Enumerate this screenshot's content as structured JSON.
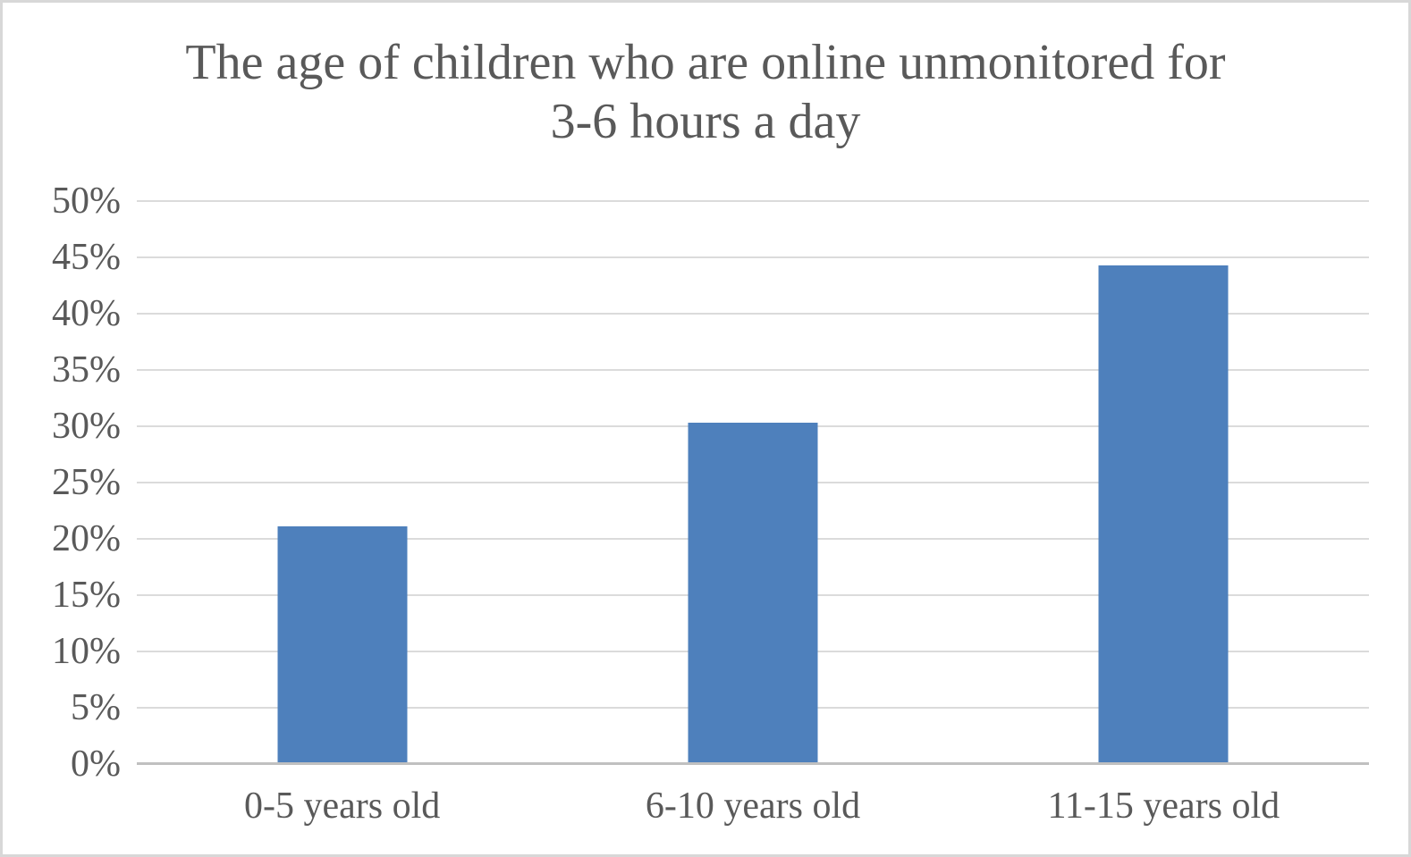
{
  "chart_data": {
    "type": "bar",
    "title": "The age of children who are online unmonitored for 3-6 hours a day",
    "title_lines": [
      "The age of children who are online unmonitored for",
      "3-6 hours a day"
    ],
    "categories": [
      "0-5 years old",
      "6-10 years old",
      "11-15 years old"
    ],
    "values": [
      21.1,
      30.3,
      44.3
    ],
    "xlabel": "",
    "ylabel": "",
    "ylim": [
      0,
      50
    ],
    "ytick_values": [
      0,
      5,
      10,
      15,
      20,
      25,
      30,
      35,
      40,
      45,
      50
    ],
    "ytick_labels": [
      "0%",
      "5%",
      "10%",
      "15%",
      "20%",
      "25%",
      "30%",
      "35%",
      "40%",
      "45%",
      "50%"
    ],
    "grid": true,
    "legend": false
  },
  "colors": {
    "bar": "#4E80BC",
    "gridline": "#DBDBDB",
    "axis": "#C0C0C0",
    "text": "#595959",
    "frame_border": "#D8D8D8",
    "background": "#FFFFFF"
  }
}
